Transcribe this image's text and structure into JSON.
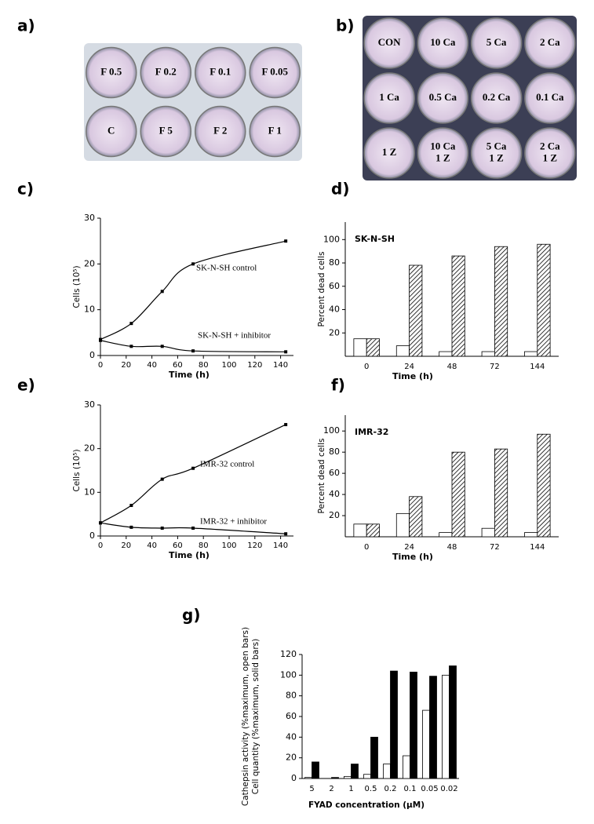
{
  "plates": [
    {
      "label": "a)",
      "rows": [
        [
          [
            "F 0.5"
          ],
          [
            "F 0.2"
          ],
          [
            "F 0.1"
          ],
          [
            "F 0.05"
          ]
        ],
        [
          [
            "C"
          ],
          [
            "F 5"
          ],
          [
            "F 2"
          ],
          [
            "F 1"
          ]
        ]
      ]
    },
    {
      "label": "b)",
      "rows": [
        [
          [
            "CON"
          ],
          [
            "10 Ca"
          ],
          [
            "5 Ca"
          ],
          [
            "2 Ca"
          ]
        ],
        [
          [
            "1 Ca"
          ],
          [
            "0.5 Ca"
          ],
          [
            "0.2 Ca"
          ],
          [
            "0.1 Ca"
          ]
        ],
        [
          [
            "1 Z"
          ],
          [
            "10 Ca",
            "1 Z"
          ],
          [
            "5 Ca",
            "1 Z"
          ],
          [
            "2 Ca",
            "1 Z"
          ]
        ]
      ]
    }
  ],
  "chart_data": [
    {
      "type": "line",
      "label": "c)",
      "ylabel": "Cells (10⁵)",
      "xlabel": "Time (h)",
      "x": [
        0,
        24,
        48,
        72,
        144
      ],
      "xlim": [
        0,
        150
      ],
      "xticks": [
        0,
        20,
        40,
        60,
        80,
        100,
        120,
        140
      ],
      "ylim": [
        0,
        30
      ],
      "yticks": [
        0,
        10,
        20,
        30
      ],
      "series": [
        {
          "name": "SK-N-SH control",
          "color": "#000000",
          "values": [
            3.5,
            7,
            14,
            20,
            25
          ]
        },
        {
          "name": "SK-N-SH + inhibitor",
          "color": "#000000",
          "values": [
            3.3,
            2,
            2,
            1,
            0.8
          ]
        }
      ]
    },
    {
      "type": "bar",
      "label": "d)",
      "title": "SK-N-SH",
      "ylabel": "Percent dead cells",
      "xlabel": "Time (h)",
      "categories": [
        "0",
        "24",
        "48",
        "72",
        "144"
      ],
      "ylim": [
        0,
        115
      ],
      "yticks": [
        20,
        40,
        60,
        80,
        100
      ],
      "series": [
        {
          "color": "#ffffff",
          "fill_style": "solid",
          "values": [
            15,
            9,
            4,
            4,
            4
          ]
        },
        {
          "color": "#000000",
          "fill_style": "hatch",
          "values": [
            15,
            78,
            86,
            94,
            96
          ]
        }
      ]
    },
    {
      "type": "line",
      "label": "e)",
      "ylabel": "Cells (10⁵)",
      "xlabel": "Time (h)",
      "x": [
        0,
        24,
        48,
        72,
        144
      ],
      "xlim": [
        0,
        150
      ],
      "xticks": [
        0,
        20,
        40,
        60,
        80,
        100,
        120,
        140
      ],
      "ylim": [
        0,
        30
      ],
      "yticks": [
        0,
        10,
        20,
        30
      ],
      "series": [
        {
          "name": "IMR-32 control",
          "color": "#000000",
          "values": [
            3,
            7,
            13,
            15.5,
            25.5
          ]
        },
        {
          "name": "IMR-32 + inhibitor",
          "color": "#000000",
          "values": [
            3,
            2,
            1.8,
            1.8,
            0.5
          ]
        }
      ]
    },
    {
      "type": "bar",
      "label": "f)",
      "title": "IMR-32",
      "ylabel": "Percent dead cells",
      "xlabel": "Time (h)",
      "categories": [
        "0",
        "24",
        "48",
        "72",
        "144"
      ],
      "ylim": [
        0,
        115
      ],
      "yticks": [
        20,
        40,
        60,
        80,
        100
      ],
      "series": [
        {
          "color": "#ffffff",
          "fill_style": "solid",
          "values": [
            12,
            22,
            4,
            8,
            4
          ]
        },
        {
          "color": "#000000",
          "fill_style": "hatch",
          "values": [
            12,
            38,
            80,
            83,
            97
          ]
        }
      ]
    },
    {
      "type": "bar",
      "label": "g)",
      "ylabel": [
        "Cathepsin activity (%maximum, open bars)",
        "Cell quantity (%maximum, solid bars)"
      ],
      "xlabel": "FYAD concentration (µM)",
      "categories": [
        "5",
        "2",
        "1",
        "0.5",
        "0.2",
        "0.1",
        "0.05",
        "0.02"
      ],
      "ylim": [
        0,
        120
      ],
      "yticks": [
        0,
        20,
        40,
        60,
        80,
        100,
        120
      ],
      "series": [
        {
          "color": "#ffffff",
          "fill_style": "solid",
          "values": [
            1,
            0,
            2,
            4,
            14,
            22,
            66,
            100
          ]
        },
        {
          "color": "#000000",
          "fill_style": "solid",
          "values": [
            16,
            1,
            14,
            40,
            104,
            103,
            99,
            109
          ]
        }
      ]
    }
  ]
}
